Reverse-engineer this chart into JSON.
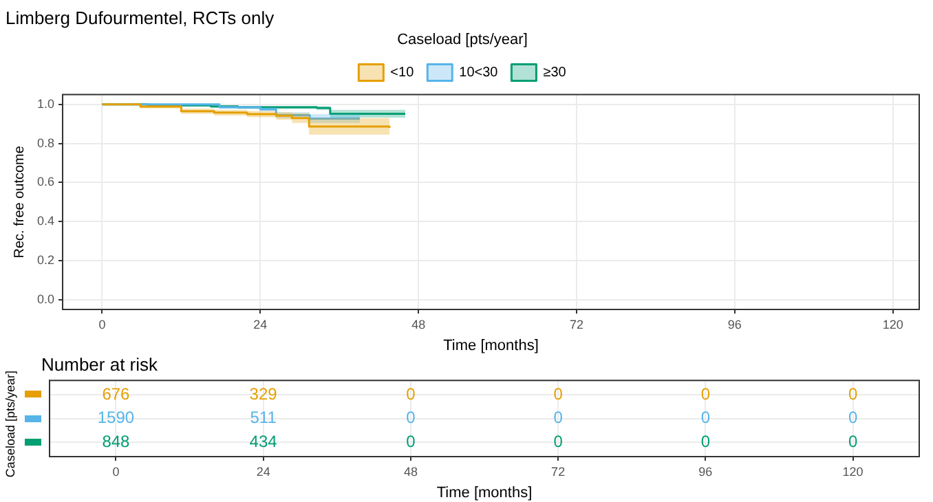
{
  "chart_data": [
    {
      "type": "step",
      "title": "Limberg Dufourmentel, RCTs only",
      "xlabel": "Time [months]",
      "ylabel": "Rec. free outcome",
      "legend_title": "Caseload [pts/year]",
      "legend": "top",
      "grid": true,
      "xlim": [
        -6,
        124
      ],
      "xticks": [
        0,
        24,
        48,
        72,
        96,
        120
      ],
      "ylim": [
        -0.05,
        1.05
      ],
      "yticks": [
        {
          "value": 0,
          "label": "0.0"
        },
        {
          "value": 0.2,
          "label": "0.2"
        },
        {
          "value": 0.4,
          "label": "0.4"
        },
        {
          "value": 0.6,
          "label": "0.6"
        },
        {
          "value": 0.8,
          "label": "0.8"
        },
        {
          "value": 1,
          "label": "1.0"
        }
      ],
      "series": [
        {
          "name": "<10",
          "color": "#e69f00",
          "x": [
            0,
            5.8,
            12,
            17,
            22,
            26.4,
            28.8,
            31.4,
            43.6
          ],
          "values": [
            1,
            0.989,
            0.965,
            0.958,
            0.95,
            0.942,
            0.93,
            0.887,
            0.88
          ],
          "lower": [
            1,
            0.98,
            0.952,
            0.943,
            0.934,
            0.922,
            0.905,
            0.845,
            0.84
          ],
          "upper": [
            1,
            0.997,
            0.978,
            0.972,
            0.966,
            0.96,
            0.955,
            0.93,
            0.93
          ]
        },
        {
          "name": "10<30",
          "color": "#56b4e9",
          "x": [
            0,
            17.8,
            24,
            26.4,
            31.5,
            39.1
          ],
          "values": [
            1,
            0.985,
            0.975,
            0.945,
            0.927,
            0.927
          ],
          "lower": [
            1,
            0.978,
            0.966,
            0.93,
            0.905,
            0.905
          ],
          "upper": [
            1,
            0.992,
            0.984,
            0.96,
            0.95,
            0.95
          ]
        },
        {
          "name": "≥30",
          "color": "#009e73",
          "x": [
            0,
            6.9,
            16.5,
            20.6,
            32.6,
            34.6,
            46
          ],
          "values": [
            1,
            0.995,
            0.99,
            0.985,
            0.982,
            0.952,
            0.952
          ],
          "lower": [
            1,
            0.99,
            0.983,
            0.977,
            0.972,
            0.932,
            0.932
          ],
          "upper": [
            1,
            0.999,
            0.996,
            0.992,
            0.99,
            0.972,
            0.972
          ]
        }
      ]
    },
    {
      "type": "heatmap",
      "title": "Number at risk",
      "xlabel": "Time [months]",
      "ylabel": "Caseload [pts/year]",
      "grid": true,
      "data_labels": true,
      "categories": [
        "0",
        "24",
        "48",
        "72",
        "96",
        "120"
      ],
      "y_categories": [
        null,
        null,
        null
      ],
      "colors": [
        "#e69f00",
        "#56b4e9",
        "#009e73"
      ],
      "cells": [
        [
          676,
          329,
          0,
          0,
          0,
          0
        ],
        [
          1590,
          511,
          0,
          0,
          0,
          0
        ],
        [
          848,
          434,
          0,
          0,
          0,
          0
        ]
      ]
    }
  ]
}
